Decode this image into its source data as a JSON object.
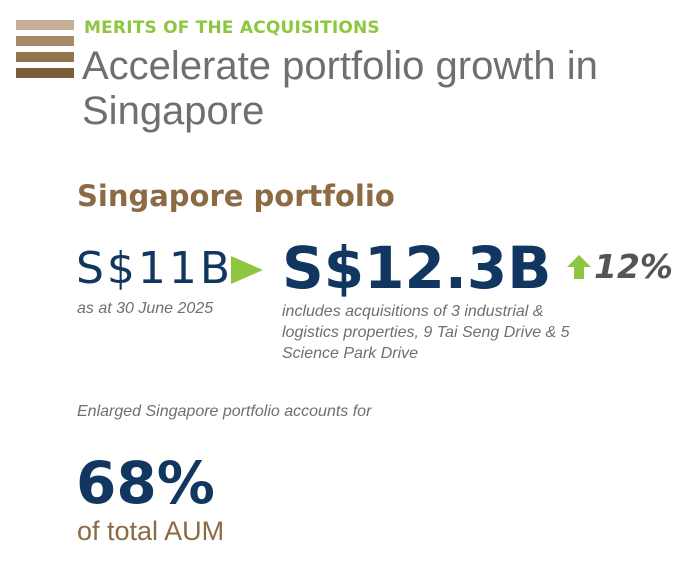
{
  "header": {
    "eyebrow": "MERITS OF THE ACQUISITIONS",
    "title": "Accelerate portfolio growth in Singapore",
    "logo_icon": "horizontal-stripes-icon"
  },
  "section": {
    "heading": "Singapore portfolio"
  },
  "portfolio": {
    "old_value": "S$11B",
    "old_date": "as at 30 June 2025",
    "new_value": "S$12.3B",
    "growth": "12%",
    "growth_icon": "arrow-up-icon",
    "transition_icon": "play-arrow-icon",
    "note": "includes acquisitions of 3 industrial & logistics properties, 9 Tai Seng Drive & 5 Science Park Drive"
  },
  "share": {
    "intro": "Enlarged Singapore portfolio accounts for",
    "value": "68%",
    "suffix": "of total AUM"
  },
  "colors": {
    "accent_green": "#8ec63f",
    "brand_brown": "#8b6a44",
    "stripe_light": "#b79f86",
    "navy": "#11365f",
    "grey_text": "#6f6f6f"
  }
}
